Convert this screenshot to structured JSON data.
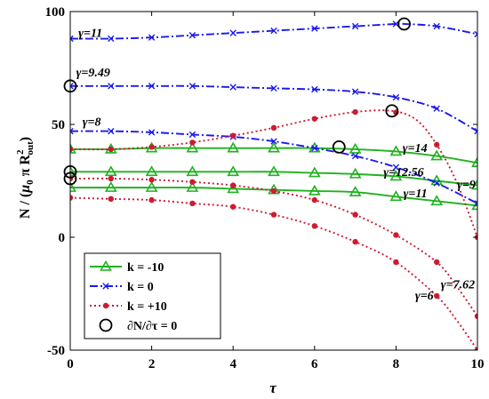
{
  "chart_data": {
    "type": "line",
    "xlabel": "τ",
    "ylabel": {
      "prefix": "N / (",
      "mu": "μ",
      "mu_sub": "0",
      "pi": " π R",
      "r_sup": "2",
      "r_sub": "out",
      "suffix": ")"
    },
    "xlim": [
      0,
      10
    ],
    "ylim": [
      -50,
      100
    ],
    "xticks": [
      "0",
      "2",
      "4",
      "6",
      "8",
      "10"
    ],
    "yticks": [
      "-50",
      "0",
      "50",
      "100"
    ],
    "grid": false,
    "legend_position": "bottom-left",
    "legend": [
      {
        "label": "k = -10",
        "series_key": "k_minus10",
        "marker": "triangle",
        "color": "#1fb21f",
        "dash": "solid"
      },
      {
        "label": "k =  0",
        "series_key": "k_zero",
        "marker": "x",
        "color": "#1a1aee",
        "dash": "dashdot"
      },
      {
        "label": "k = +10",
        "series_key": "k_plus10",
        "marker": "dot",
        "color": "#cc1b32",
        "dash": "dotted"
      },
      {
        "label": "∂N/∂τ = 0",
        "series_key": "extrema",
        "marker": "circle",
        "color": "#000000",
        "dash": "none"
      }
    ],
    "series": [
      {
        "key": "k_minus10",
        "gamma": "14",
        "gamma_label": "γ=14",
        "x": [
          0,
          0.5,
          1,
          2,
          3,
          4,
          5,
          6,
          7,
          8,
          9,
          10
        ],
        "y": [
          39,
          39,
          39,
          39.5,
          39.5,
          39.5,
          39.5,
          39.5,
          39,
          38,
          36,
          33
        ]
      },
      {
        "key": "k_minus10",
        "gamma": "12.56",
        "gamma_label": "γ=12.56",
        "x": [
          0,
          0.5,
          1,
          2,
          3,
          4,
          5,
          6,
          7,
          8,
          9,
          10
        ],
        "y": [
          29,
          29,
          29,
          29,
          29,
          29,
          29,
          28.5,
          28,
          27,
          25,
          23
        ]
      },
      {
        "key": "k_minus10",
        "gamma": "11",
        "gamma_label": "γ=11",
        "x": [
          0,
          0.5,
          1,
          2,
          3,
          4,
          5,
          6,
          7,
          8,
          9,
          10
        ],
        "y": [
          22,
          22,
          22,
          22,
          22,
          21.5,
          21,
          20.5,
          20,
          18,
          16,
          14
        ]
      },
      {
        "key": "k_zero",
        "gamma": "11",
        "gamma_label": "γ=11",
        "x": [
          0,
          1,
          2,
          3,
          4,
          5,
          6,
          7,
          8,
          8.2,
          9,
          10
        ],
        "y": [
          88,
          88,
          88.5,
          89.5,
          90.5,
          91.5,
          92.5,
          93.5,
          94.5,
          94.5,
          93.5,
          90
        ]
      },
      {
        "key": "k_zero",
        "gamma": "9.49",
        "gamma_label": "γ=9.49",
        "x": [
          0,
          1,
          2,
          3,
          4,
          5,
          6,
          7,
          8,
          9,
          10
        ],
        "y": [
          67,
          67,
          67,
          67,
          66.5,
          66,
          65.5,
          64.5,
          62,
          57,
          47
        ]
      },
      {
        "key": "k_zero",
        "gamma": "8",
        "gamma_label": "γ=8",
        "x": [
          0,
          1,
          2,
          3,
          4,
          5,
          6,
          7,
          8,
          9,
          10
        ],
        "y": [
          47,
          47,
          46.5,
          45.5,
          44.5,
          42.5,
          39.5,
          36,
          31,
          24,
          15
        ]
      },
      {
        "key": "k_plus10",
        "gamma": "9",
        "gamma_label": "γ=9",
        "x": [
          0,
          1,
          2,
          3,
          4,
          5,
          6,
          7,
          7.9,
          8.5,
          9,
          9.5,
          10
        ],
        "y": [
          39,
          39,
          40,
          42,
          45,
          48.5,
          52.5,
          55.5,
          56,
          52,
          41,
          24,
          0
        ]
      },
      {
        "key": "k_plus10",
        "gamma": "7.62",
        "gamma_label": "γ=7.62",
        "x": [
          0,
          1,
          2,
          3,
          4,
          5,
          6,
          7,
          8,
          9,
          9.5,
          10
        ],
        "y": [
          26,
          26,
          25.5,
          24.5,
          23,
          20.5,
          16.5,
          10,
          1,
          -11,
          -22,
          -35
        ]
      },
      {
        "key": "k_plus10",
        "gamma": "6",
        "gamma_label": "γ=6",
        "x": [
          0,
          1,
          2,
          3,
          4,
          5,
          6,
          7,
          8,
          9,
          9.5,
          10
        ],
        "y": [
          17.5,
          17,
          16.5,
          15,
          13.5,
          10,
          5,
          -2,
          -11,
          -26,
          -37,
          -50
        ]
      }
    ],
    "extrema_points": {
      "x": [
        0,
        0,
        0,
        6.6,
        7.9,
        8.2
      ],
      "y": [
        67,
        29,
        26,
        40,
        56,
        94.5
      ]
    }
  }
}
